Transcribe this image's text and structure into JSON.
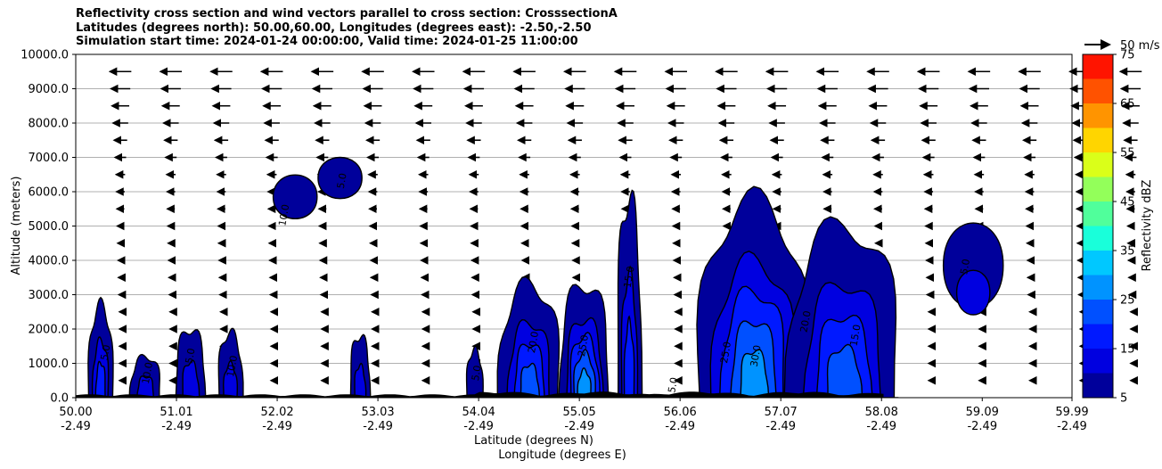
{
  "title": {
    "line1": "Reflectivity cross section and wind vectors parallel to cross section: CrosssectionA",
    "line2": "Latitudes (degrees north): 50.00,60.00, Longitudes (degrees east): -2.50,-2.50",
    "line3": "Simulation start time: 2024-01-24 00:00:00, Valid time: 2024-01-25 11:00:00"
  },
  "chart_data": {
    "type": "heatmap",
    "subtype": "filled-contour cross section with wind vectors",
    "ylabel": "Altitude (meters)",
    "xlabel_lat": "Latitude (degrees N)",
    "xlabel_lon": "Longitude (degrees E)",
    "ylim": [
      0,
      10000
    ],
    "xlim": [
      50.0,
      59.99
    ],
    "y_ticks": [
      "0.0",
      "1000.0",
      "2000.0",
      "3000.0",
      "4000.0",
      "5000.0",
      "6000.0",
      "7000.0",
      "8000.0",
      "9000.0",
      "10000.0"
    ],
    "x_ticks_lat": [
      "50.00",
      "51.01",
      "52.02",
      "53.03",
      "54.04",
      "55.05",
      "56.06",
      "57.07",
      "58.08",
      "59.09",
      "59.99"
    ],
    "x_ticks_lon": [
      "-2.49",
      "-2.49",
      "-2.49",
      "-2.49",
      "-2.49",
      "-2.49",
      "-2.49",
      "-2.49",
      "-2.49",
      "-2.49",
      "-2.49"
    ],
    "grid": "horizontal",
    "colorbar": {
      "label": "Reflectivity dBZ",
      "ticks": [
        "5",
        "15",
        "25",
        "35",
        "45",
        "55",
        "65",
        "75"
      ],
      "levels": [
        5,
        10,
        15,
        20,
        25,
        30,
        35,
        40,
        45,
        50,
        55,
        60,
        65,
        70,
        75
      ],
      "colors": [
        "#00009b",
        "#0000e0",
        "#0019ff",
        "#0050ff",
        "#0093ff",
        "#00c8ff",
        "#19ffda",
        "#50ff9b",
        "#93ff5a",
        "#daff19",
        "#ffd500",
        "#ff9400",
        "#ff5200",
        "#ff1400",
        "#a50000"
      ]
    },
    "vector_key": "50 m/s",
    "contour_labels": [
      "5.0",
      "10.0",
      "15.0",
      "20.0",
      "25.0",
      "30.0"
    ],
    "cells": [
      {
        "center_lat": 50.25,
        "top_m": 2700,
        "max_dbz": 20
      },
      {
        "center_lat": 50.7,
        "top_m": 1200,
        "max_dbz": 15
      },
      {
        "center_lat": 51.15,
        "top_m": 2000,
        "max_dbz": 15
      },
      {
        "center_lat": 51.55,
        "top_m": 1900,
        "max_dbz": 15
      },
      {
        "center_lat": 52.2,
        "top_m": 6700,
        "max_dbz": 10
      },
      {
        "center_lat": 52.65,
        "top_m": 7200,
        "max_dbz": 10
      },
      {
        "center_lat": 52.85,
        "top_m": 1800,
        "max_dbz": 15
      },
      {
        "center_lat": 54.0,
        "top_m": 1400,
        "max_dbz": 10
      },
      {
        "center_lat": 54.55,
        "top_m": 3300,
        "max_dbz": 25
      },
      {
        "center_lat": 55.1,
        "top_m": 3300,
        "max_dbz": 30
      },
      {
        "center_lat": 55.55,
        "top_m": 5800,
        "max_dbz": 20
      },
      {
        "center_lat": 56.8,
        "top_m": 5700,
        "max_dbz": 30
      },
      {
        "center_lat": 57.7,
        "top_m": 5000,
        "max_dbz": 25
      },
      {
        "center_lat": 59.0,
        "top_m": 5500,
        "max_dbz": 15
      }
    ]
  }
}
